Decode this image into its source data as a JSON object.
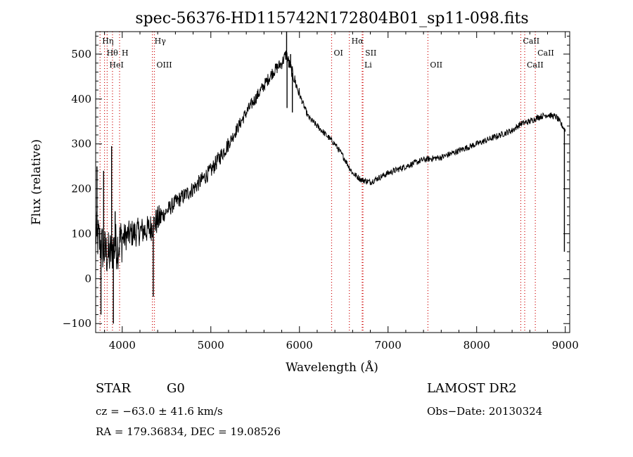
{
  "chart_data": {
    "type": "line",
    "title": "spec-56376-HD115742N172804B01_sp11-098.fits",
    "xlabel": "Wavelength (Å)",
    "ylabel": "Flux (relative)",
    "xlim": [
      3700,
      9050
    ],
    "ylim": [
      -120,
      550
    ],
    "xticks": [
      4000,
      5000,
      6000,
      7000,
      8000,
      9000
    ],
    "yticks": [
      -100,
      0,
      100,
      200,
      300,
      400,
      500
    ],
    "grid": false,
    "line_color": "#000000",
    "marker_color": "#cc0000",
    "spectrum_anchors": {
      "x": [
        3700,
        3750,
        3800,
        3850,
        3900,
        3950,
        4000,
        4100,
        4200,
        4300,
        4400,
        4600,
        4800,
        5000,
        5200,
        5400,
        5600,
        5700,
        5800,
        5850,
        5900,
        5950,
        6000,
        6100,
        6200,
        6300,
        6400,
        6500,
        6600,
        6700,
        6800,
        6900,
        7000,
        7200,
        7400,
        7600,
        7800,
        8000,
        8200,
        8400,
        8500,
        8600,
        8700,
        8800,
        8900,
        9000
      ],
      "y": [
        100,
        80,
        60,
        50,
        70,
        75,
        90,
        100,
        105,
        110,
        130,
        170,
        200,
        240,
        300,
        370,
        430,
        460,
        480,
        500,
        470,
        440,
        410,
        360,
        340,
        320,
        300,
        270,
        235,
        220,
        215,
        225,
        235,
        250,
        265,
        270,
        285,
        300,
        315,
        330,
        345,
        350,
        360,
        365,
        360,
        330
      ]
    },
    "spikes": [
      {
        "x": 3715,
        "y": 250
      },
      {
        "x": 3760,
        "y": -80
      },
      {
        "x": 3790,
        "y": 240
      },
      {
        "x": 3880,
        "y": 295
      },
      {
        "x": 3900,
        "y": -100
      },
      {
        "x": 3920,
        "y": 150
      },
      {
        "x": 4350,
        "y": -40
      },
      {
        "x": 5855,
        "y": 550
      },
      {
        "x": 5860,
        "y": 380
      },
      {
        "x": 5880,
        "y": 470
      },
      {
        "x": 5900,
        "y": 500
      },
      {
        "x": 5920,
        "y": 370
      },
      {
        "x": 8990,
        "y": 60
      }
    ],
    "spectral_lines": [
      {
        "x": 3750,
        "label": "Hη",
        "row": 0
      },
      {
        "x": 3800,
        "label": "Hθ",
        "row": 1
      },
      {
        "x": 3830,
        "label": "HeI",
        "row": 2
      },
      {
        "x": 3890,
        "label": "",
        "row": 0
      },
      {
        "x": 3970,
        "label": "H",
        "row": 1
      },
      {
        "x": 4340,
        "label": "Hγ",
        "row": 0
      },
      {
        "x": 4363,
        "label": "OIII",
        "row": 2
      },
      {
        "x": 6363,
        "label": "OI",
        "row": 1
      },
      {
        "x": 6563,
        "label": "Hα",
        "row": 0
      },
      {
        "x": 6717,
        "label": "SII",
        "row": 1
      },
      {
        "x": 6708,
        "label": "Li",
        "row": 2
      },
      {
        "x": 7450,
        "label": "OII",
        "row": 2
      },
      {
        "x": 8498,
        "label": "CaII",
        "row": 0
      },
      {
        "x": 8542,
        "label": "CaII",
        "row": 2
      },
      {
        "x": 8662,
        "label": "CaII",
        "row": 1
      }
    ]
  },
  "info": {
    "object_class": "STAR",
    "subclass": "G0",
    "survey": "LAMOST DR2",
    "cz": "cz = −63.0 ± 41.6 km/s",
    "obs_date": "Obs−Date: 20130324",
    "coords": "RA = 179.36834, DEC =  19.08526"
  }
}
